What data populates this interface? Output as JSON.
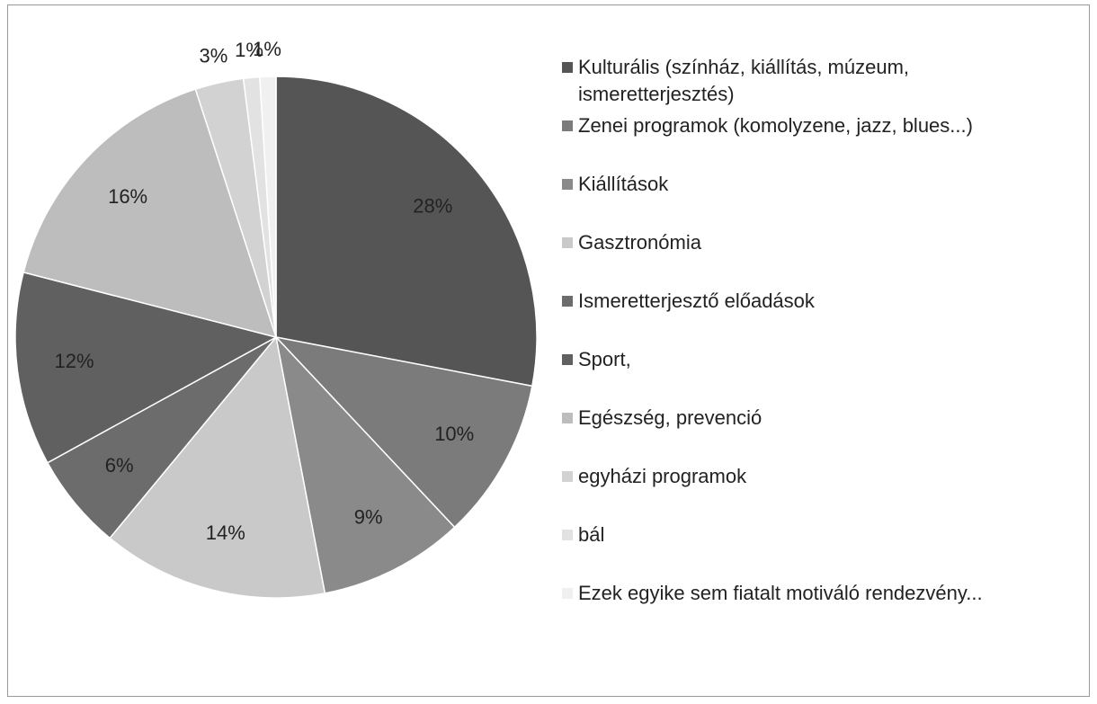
{
  "chart_data": {
    "type": "pie",
    "categories": [
      "Kulturális (színház, kiállítás, múzeum, ismeretterjesztés)",
      "Zenei programok (komolyzene, jazz, blues...)",
      "Kiállítások",
      "Gasztronómia",
      "Ismeretterjesztő előadások",
      "Sport,",
      "Egészség,  prevenció",
      "egyházi programok",
      "bál",
      "Ezek egyike sem fiatalt motiváló rendezvény..."
    ],
    "values": [
      28,
      10,
      9,
      14,
      6,
      12,
      16,
      3,
      1,
      1
    ],
    "value_labels": [
      "28%",
      "10%",
      "9%",
      "14%",
      "6%",
      "12%",
      "16%",
      "3%",
      "1%",
      "1%"
    ],
    "colors": [
      "#555555",
      "#7b7b7b",
      "#8a8a8a",
      "#c9c9c9",
      "#6c6c6c",
      "#606060",
      "#bdbdbd",
      "#d2d2d2",
      "#e2e2e2",
      "#f0f0f0"
    ],
    "legend": "right"
  }
}
